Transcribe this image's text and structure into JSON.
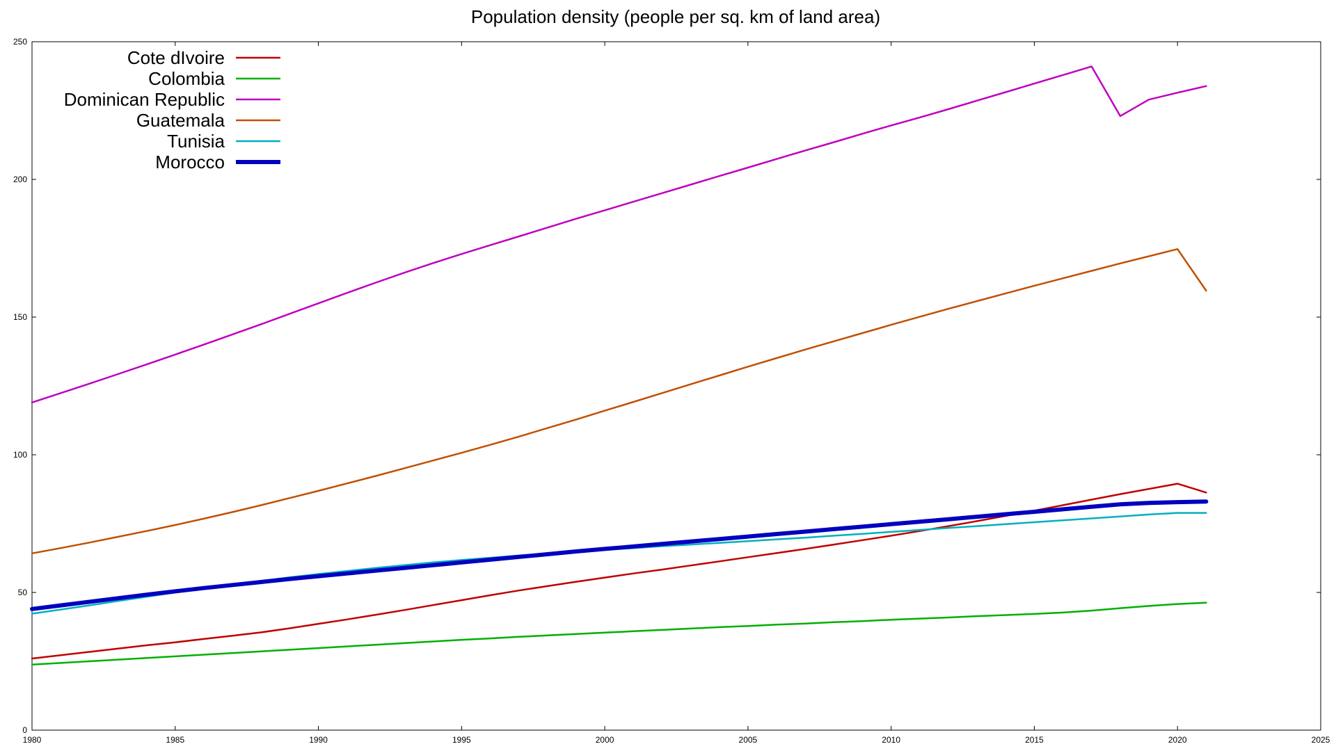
{
  "chart_data": {
    "type": "line",
    "title": "Population density (people per sq. km of land area)",
    "xlabel": "",
    "ylabel": "",
    "xlim": [
      1980,
      2025
    ],
    "ylim": [
      0,
      250
    ],
    "x_ticks": [
      1980,
      1985,
      1990,
      1995,
      2000,
      2005,
      2010,
      2015,
      2020,
      2025
    ],
    "y_ticks": [
      0,
      50,
      100,
      150,
      200,
      250
    ],
    "grid": false,
    "legend_position": "top-left",
    "x": [
      1980,
      1981,
      1982,
      1983,
      1984,
      1985,
      1986,
      1987,
      1988,
      1989,
      1990,
      1991,
      1992,
      1993,
      1994,
      1995,
      1996,
      1997,
      1998,
      1999,
      2000,
      2001,
      2002,
      2003,
      2004,
      2005,
      2006,
      2007,
      2008,
      2009,
      2010,
      2011,
      2012,
      2013,
      2014,
      2015,
      2016,
      2017,
      2018,
      2019,
      2020,
      2021
    ],
    "series": [
      {
        "name": "Cote dIvoire",
        "color": "#c00000",
        "width": 2.5,
        "values": [
          26.0,
          27.2,
          28.4,
          29.6,
          30.8,
          31.9,
          33.1,
          34.3,
          35.5,
          37.0,
          38.6,
          40.2,
          41.9,
          43.6,
          45.4,
          47.2,
          49.0,
          50.7,
          52.3,
          53.9,
          55.4,
          56.9,
          58.3,
          59.8,
          61.3,
          62.8,
          64.3,
          65.8,
          67.4,
          69.0,
          70.6,
          72.3,
          74.1,
          75.9,
          77.8,
          79.7,
          81.7,
          83.7,
          85.7,
          87.6,
          89.5,
          86.3
        ]
      },
      {
        "name": "Colombia",
        "color": "#00b000",
        "width": 2.5,
        "values": [
          23.8,
          24.4,
          25.0,
          25.6,
          26.2,
          26.8,
          27.4,
          28.0,
          28.6,
          29.2,
          29.8,
          30.4,
          31.0,
          31.6,
          32.2,
          32.8,
          33.3,
          33.9,
          34.4,
          34.9,
          35.4,
          35.9,
          36.4,
          36.9,
          37.4,
          37.8,
          38.3,
          38.7,
          39.2,
          39.6,
          40.1,
          40.5,
          40.9,
          41.4,
          41.8,
          42.2,
          42.7,
          43.4,
          44.3,
          45.1,
          45.8,
          46.3
        ]
      },
      {
        "name": "Dominican Republic",
        "color": "#c000c0",
        "width": 2.5,
        "values": [
          119.0,
          122.4,
          125.8,
          129.3,
          132.8,
          136.4,
          140.0,
          143.7,
          147.4,
          151.2,
          155.0,
          158.8,
          162.5,
          166.1,
          169.6,
          172.9,
          176.1,
          179.3,
          182.5,
          185.7,
          188.8,
          191.9,
          195.0,
          198.1,
          201.2,
          204.3,
          207.4,
          210.5,
          213.5,
          216.6,
          219.6,
          222.5,
          225.5,
          228.6,
          231.7,
          234.8,
          237.9,
          241.0,
          223.0,
          229.0,
          231.5,
          233.9
        ]
      },
      {
        "name": "Guatemala",
        "color": "#c05000",
        "width": 2.5,
        "values": [
          64.2,
          66.1,
          68.1,
          70.2,
          72.3,
          74.5,
          76.8,
          79.2,
          81.7,
          84.3,
          86.9,
          89.6,
          92.3,
          95.1,
          97.9,
          100.7,
          103.6,
          106.6,
          109.7,
          112.8,
          116.0,
          119.2,
          122.4,
          125.6,
          128.8,
          132.0,
          135.1,
          138.2,
          141.2,
          144.2,
          147.2,
          150.1,
          153.0,
          155.8,
          158.6,
          161.4,
          164.1,
          166.8,
          169.5,
          172.1,
          174.7,
          159.6
        ]
      },
      {
        "name": "Tunisia",
        "color": "#00b0c0",
        "width": 2.5,
        "values": [
          42.3,
          43.8,
          45.3,
          46.9,
          48.4,
          50.0,
          51.5,
          52.9,
          54.2,
          55.5,
          56.7,
          57.8,
          58.9,
          59.9,
          60.9,
          61.8,
          62.6,
          63.4,
          64.1,
          64.8,
          65.5,
          66.1,
          66.8,
          67.4,
          68.0,
          68.6,
          69.3,
          69.9,
          70.6,
          71.3,
          72.0,
          72.7,
          73.4,
          74.1,
          74.8,
          75.5,
          76.2,
          76.9,
          77.6,
          78.3,
          78.9,
          78.9
        ]
      },
      {
        "name": "Morocco",
        "color": "#0000c0",
        "width": 6,
        "values": [
          44.0,
          45.3,
          46.6,
          47.9,
          49.2,
          50.4,
          51.6,
          52.7,
          53.8,
          54.9,
          55.9,
          56.9,
          57.9,
          58.9,
          59.9,
          60.9,
          61.9,
          62.9,
          63.9,
          64.9,
          65.8,
          66.7,
          67.6,
          68.5,
          69.4,
          70.3,
          71.2,
          72.1,
          73.0,
          73.9,
          74.8,
          75.7,
          76.6,
          77.5,
          78.4,
          79.3,
          80.2,
          81.1,
          82.0,
          82.5,
          82.8,
          83.0
        ]
      }
    ]
  }
}
